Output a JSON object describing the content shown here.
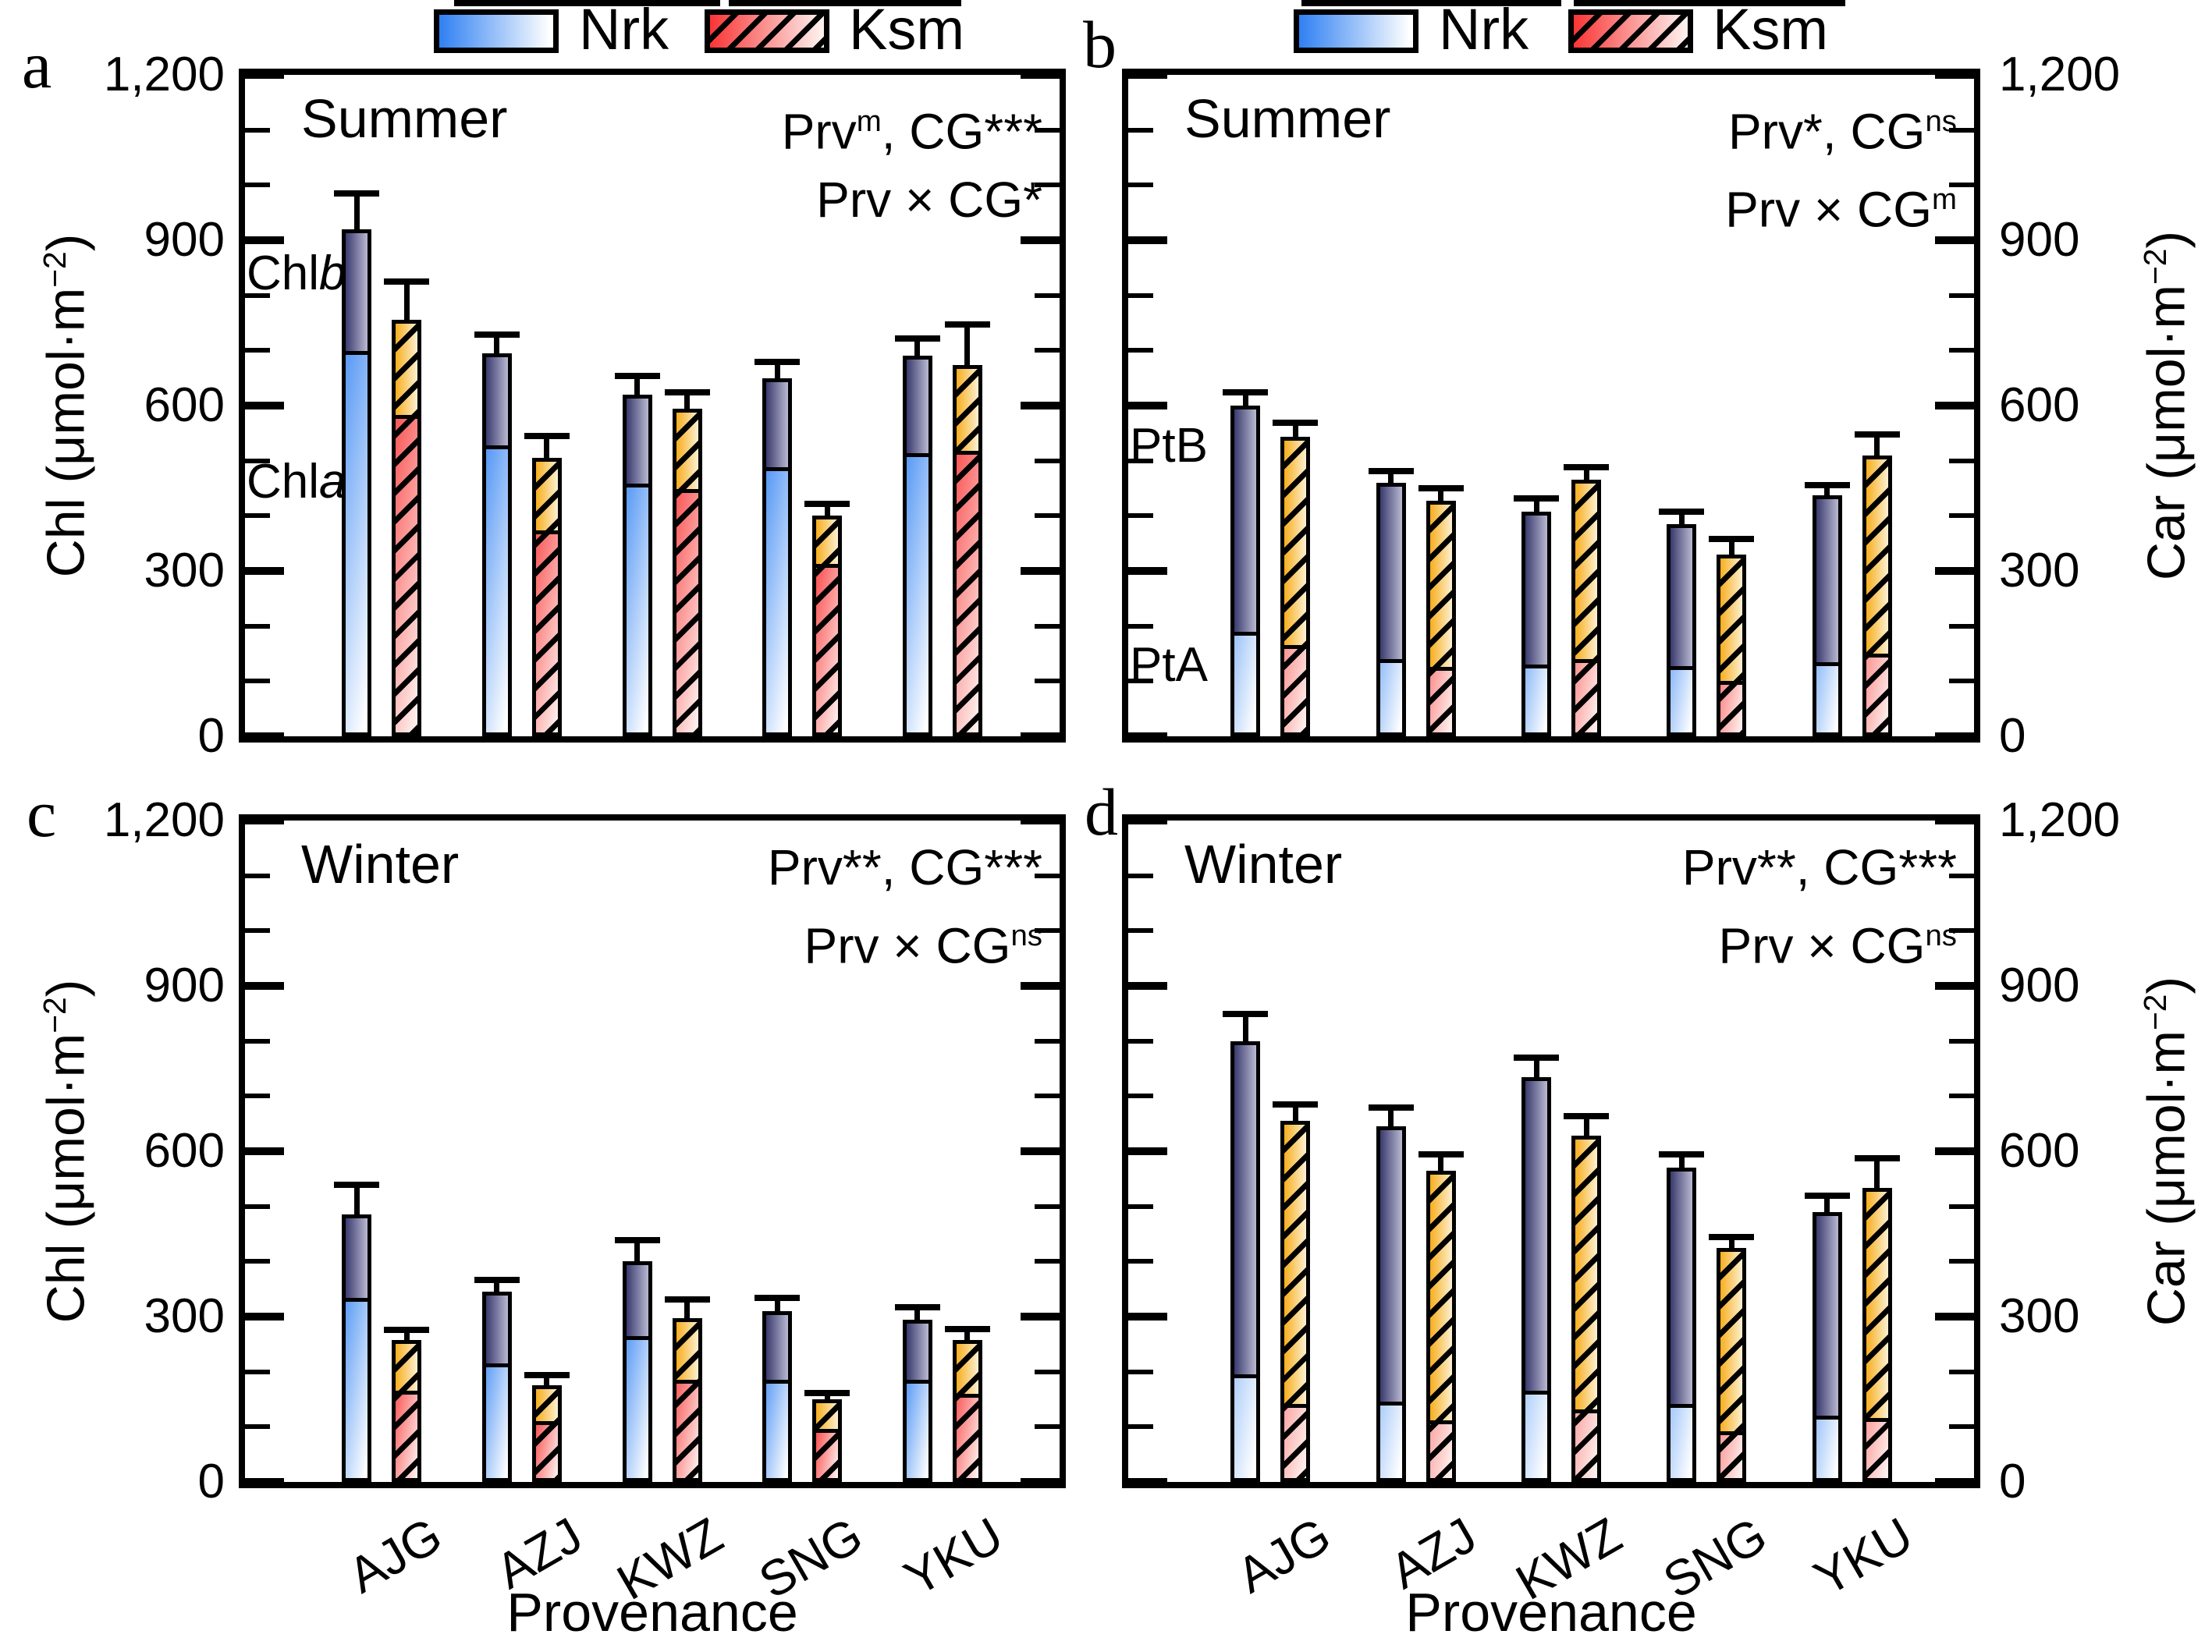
{
  "legend": {
    "items": [
      {
        "label": "Nrk",
        "swatch": "blue-gradient"
      },
      {
        "label": "Ksm",
        "swatch": "red-hatched-gradient"
      }
    ]
  },
  "axes": {
    "y_left_title": {
      "text": "Chl (μmol·m",
      "sup": "−2",
      "close": ")"
    },
    "y_right_title": {
      "text": "Car (μmol·m",
      "sup": "−2",
      "close": ")"
    },
    "x_title": "Provenance",
    "y_ticks": {
      "values": [
        0,
        300,
        600,
        900,
        1200
      ],
      "labels": [
        "0",
        "300",
        "600",
        "900",
        "1,200"
      ],
      "minor": [
        100,
        200,
        400,
        500,
        700,
        800,
        1000,
        1100
      ]
    }
  },
  "colors": {
    "nrk_bottom_left": "#2f80f2",
    "nrk_bottom_right": "#ffffff",
    "nrk_top_left": "#3a3a6e",
    "nrk_top_right": "#b9b9d2",
    "ksm_bottom_left": "#f93535",
    "ksm_bottom_right": "#fdefec",
    "ksm_top_left": "#f7ae1e",
    "ksm_top_right": "#fcf0d2",
    "hatch": "#000000",
    "line": "#000000"
  },
  "chart_data": {
    "type": "bar",
    "subtype": "grouped-stacked-columns-with-error-bars",
    "ylim": [
      0,
      1200
    ],
    "units": "μmol·m−2",
    "grid": false,
    "legend_position": "top",
    "categories": [
      "AJG",
      "AZJ",
      "KWZ",
      "SNG",
      "YKU"
    ],
    "panels": [
      {
        "id": "a",
        "letter": "a",
        "season": "Summer",
        "measure": "Chl",
        "y_axis_side": "left",
        "show_x_labels": false,
        "stack_labels": [
          "Chl a",
          "Chl b"
        ],
        "annotation_lines": [
          [
            {
              "t": "Prv"
            },
            {
              "s": "m"
            },
            {
              "t": ", CG***"
            }
          ],
          [
            {
              "t": "Prv × CG*"
            }
          ]
        ],
        "inner_labels": [
          {
            "parts": [
              {
                "t": "Chl"
              },
              {
                "i": "b"
              }
            ],
            "value": 839
          },
          {
            "parts": [
              {
                "t": "Chl"
              },
              {
                "i": "a"
              }
            ],
            "value": 461
          }
        ],
        "series": [
          {
            "name": "Nrk",
            "style": "nrk",
            "bottoms": [
              695,
              525,
              455,
              485,
              510
            ],
            "totals": [
              920,
              695,
              620,
              650,
              690
            ],
            "err_tops": [
              990,
              735,
              660,
              685,
              727
            ]
          },
          {
            "name": "Ksm",
            "style": "ksm",
            "bottoms": [
              580,
              370,
              445,
              310,
              515
            ],
            "totals": [
              755,
              505,
              595,
              400,
              673
            ],
            "err_tops": [
              830,
              550,
              630,
              428,
              753
            ]
          }
        ]
      },
      {
        "id": "b",
        "letter": "b",
        "season": "Summer",
        "measure": "Car",
        "y_axis_side": "right",
        "show_x_labels": false,
        "stack_labels": [
          "PtA",
          "PtB"
        ],
        "annotation_lines": [
          [
            {
              "t": "Prv*, CG"
            },
            {
              "s": "ns"
            }
          ],
          [
            {
              "t": "Prv × CG"
            },
            {
              "s": "m"
            }
          ]
        ],
        "inner_labels": [
          {
            "parts": [
              {
                "t": "PtB"
              }
            ],
            "value": 526
          },
          {
            "parts": [
              {
                "t": "PtA"
              }
            ],
            "value": 129
          }
        ],
        "series": [
          {
            "name": "Nrk",
            "style": "nrk",
            "bottoms": [
              180,
              130,
              120,
              118,
              125
            ],
            "totals": [
              600,
              460,
              408,
              385,
              437
            ],
            "err_tops": [
              630,
              487,
              437,
              413,
              462
            ]
          },
          {
            "name": "Ksm",
            "style": "ksm",
            "bottoms": [
              155,
              115,
              130,
              90,
              140
            ],
            "totals": [
              543,
              427,
              465,
              330,
              510
            ],
            "err_tops": [
              574,
              456,
              494,
              363,
              553
            ]
          }
        ]
      },
      {
        "id": "c",
        "letter": "c",
        "season": "Winter",
        "measure": "Chl",
        "y_axis_side": "left",
        "show_x_labels": true,
        "stack_labels": [
          "Chl a",
          "Chl b"
        ],
        "annotation_lines": [
          [
            {
              "t": "Prv**, CG***"
            }
          ],
          [
            {
              "t": "Prv × CG"
            },
            {
              "s": "ns"
            }
          ]
        ],
        "inner_labels": [],
        "series": [
          {
            "name": "Nrk",
            "style": "nrk",
            "bottoms": [
              330,
              210,
              260,
              180,
              180
            ],
            "totals": [
              485,
              345,
              400,
              310,
              295
            ],
            "err_tops": [
              545,
              372,
              445,
              340,
              322
            ]
          },
          {
            "name": "Ksm",
            "style": "ksm",
            "bottoms": [
              160,
              105,
              180,
              90,
              155
            ],
            "totals": [
              257,
              175,
              297,
              150,
              257
            ],
            "err_tops": [
              282,
              200,
              337,
              167,
              283
            ]
          }
        ]
      },
      {
        "id": "d",
        "letter": "d",
        "season": "Winter",
        "measure": "Car",
        "y_axis_side": "right",
        "show_x_labels": true,
        "stack_labels": [
          "PtA",
          "PtB"
        ],
        "annotation_lines": [
          [
            {
              "t": "Prv**, CG***"
            }
          ],
          [
            {
              "t": "Prv × CG"
            },
            {
              "s": "ns"
            }
          ]
        ],
        "inner_labels": [],
        "series": [
          {
            "name": "Nrk",
            "style": "nrk",
            "bottoms": [
              185,
              135,
              155,
              130,
              110
            ],
            "totals": [
              800,
              645,
              735,
              570,
              490
            ],
            "err_tops": [
              855,
              685,
              775,
              600,
              525
            ]
          },
          {
            "name": "Ksm",
            "style": "ksm",
            "bottoms": [
              130,
              100,
              120,
              80,
              105
            ],
            "totals": [
              655,
              565,
              628,
              425,
              533
            ],
            "err_tops": [
              690,
              600,
              670,
              450,
              593
            ]
          }
        ]
      }
    ]
  }
}
